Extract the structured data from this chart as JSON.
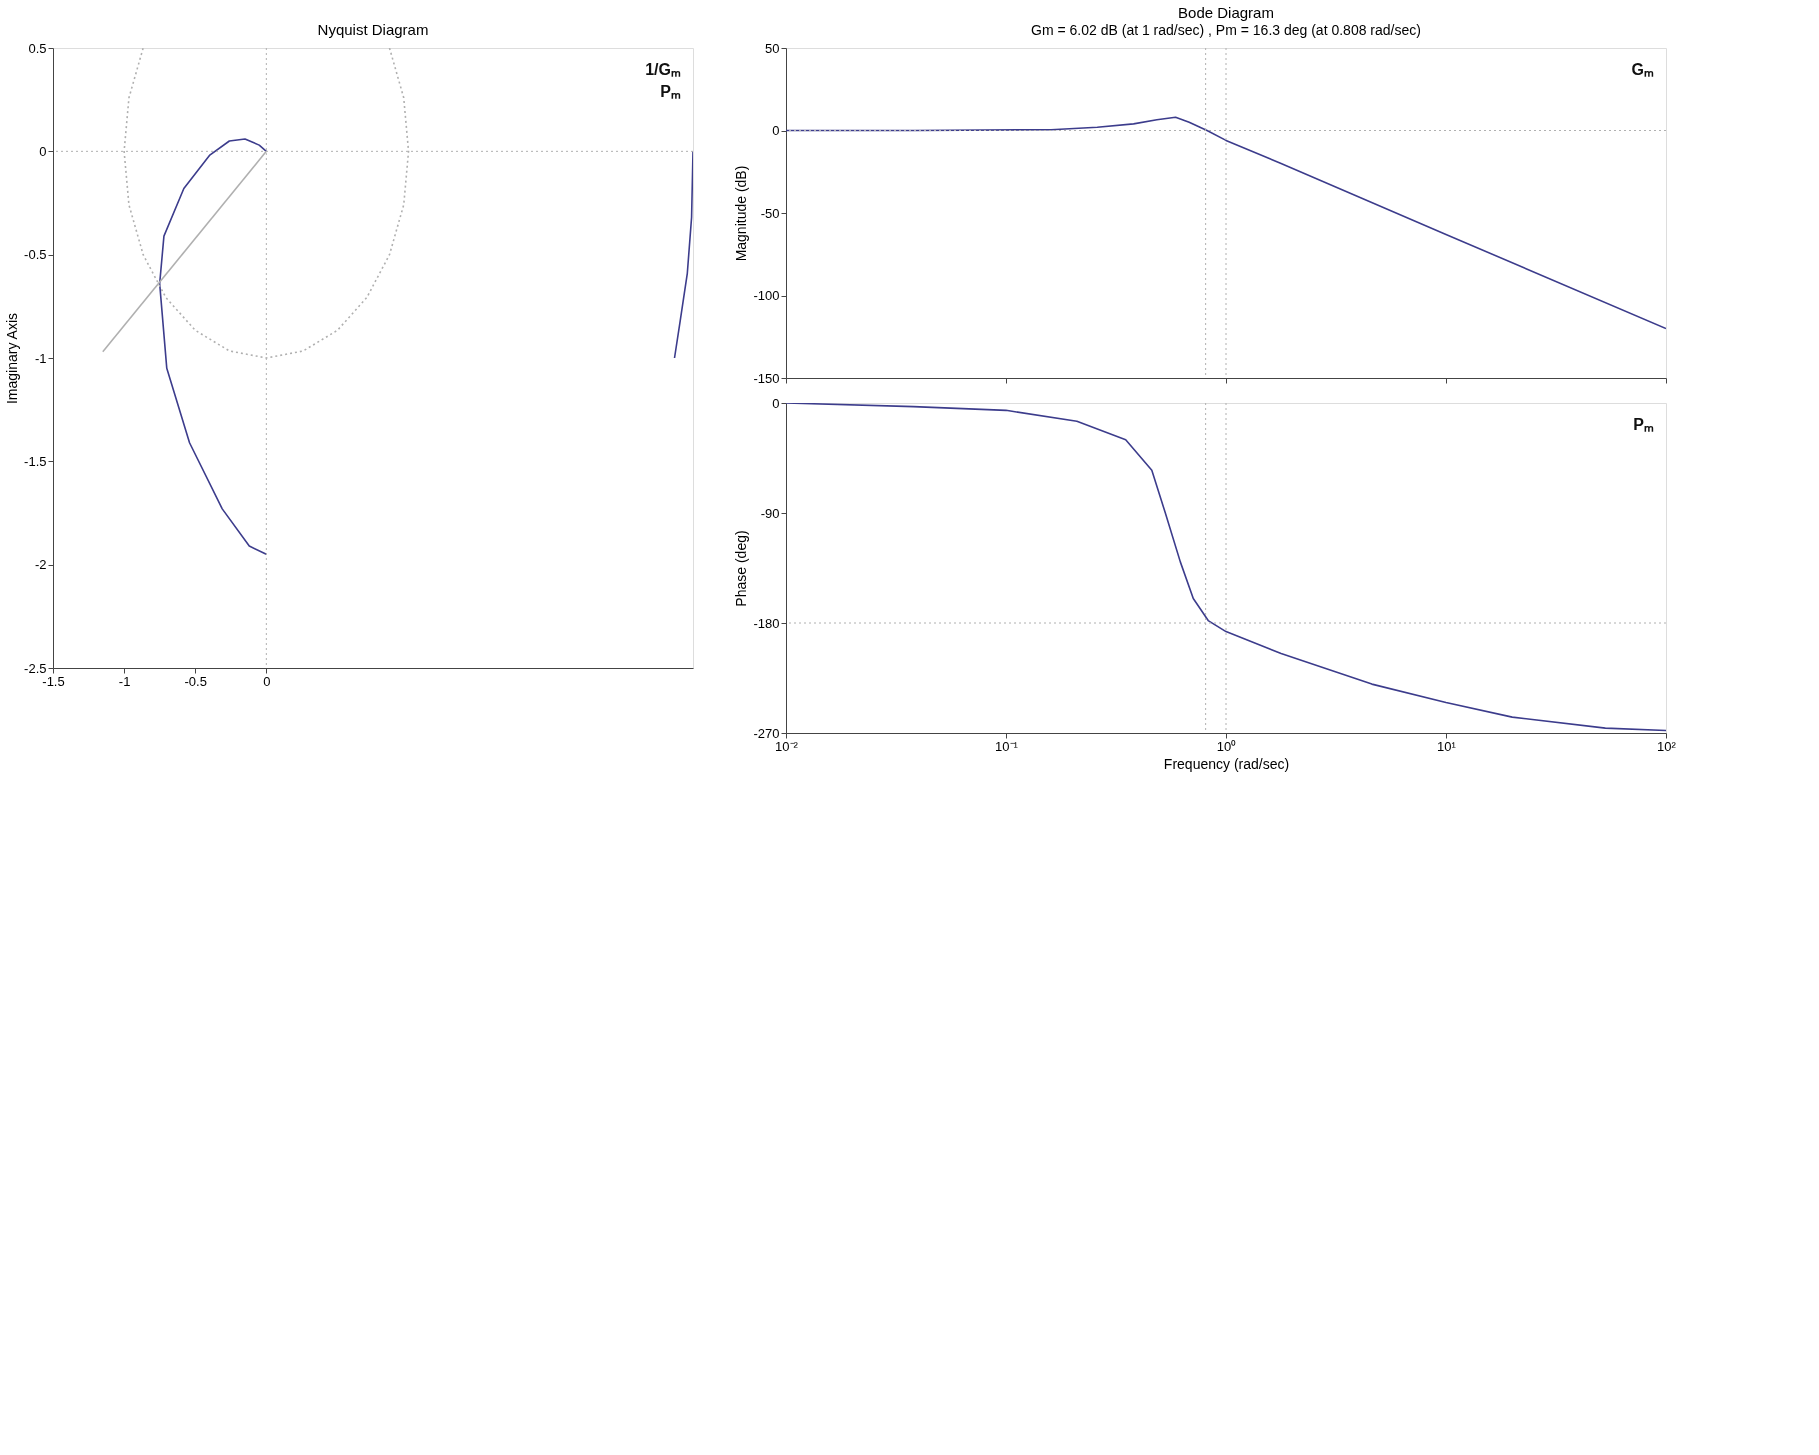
{
  "chart_data": [
    {
      "type": "line",
      "title": "Nyquist Diagram",
      "ylabel": "Imaginary Axis",
      "xlim": [
        -1.5,
        3
      ],
      "ylim": [
        -2.5,
        0.5
      ],
      "xticks": [
        -1.5,
        -1,
        -0.5,
        0
      ],
      "yticks": [
        -2.5,
        -2,
        -1.5,
        -1,
        -0.5,
        0,
        0.5
      ],
      "grid": false,
      "series": [
        {
          "color": "#3c3c8c",
          "line_style": "solid",
          "x": [
            3,
            2.99,
            2.96,
            2.91,
            2.87,
            null,
            0,
            -0.12,
            -0.31,
            -0.54,
            -0.7,
            -0.75,
            -0.72,
            -0.58,
            -0.4,
            -0.26,
            -0.15,
            -0.05,
            0
          ],
          "values": [
            0,
            -0.32,
            -0.59,
            -0.82,
            -1.0,
            null,
            -1.95,
            -1.91,
            -1.73,
            -1.41,
            -1.05,
            -0.64,
            -0.41,
            -0.18,
            -0.02,
            0.05,
            0.06,
            0.03,
            0
          ]
        },
        {
          "color": "#b0b0b0",
          "line_style": "solid",
          "x": [
            0,
            -1.15
          ],
          "values": [
            0,
            -0.97
          ]
        },
        {
          "color": "#b0b0b0",
          "line_style": "dotted",
          "x": [
            0.866,
            0.966,
            1,
            0.966,
            0.866,
            0.707,
            0.5,
            0.259,
            0,
            -0.259,
            -0.5,
            -0.707,
            -0.866,
            -0.966,
            -1,
            -0.966,
            -0.866
          ],
          "values": [
            0.5,
            0.259,
            0,
            -0.259,
            -0.5,
            -0.707,
            -0.866,
            -0.966,
            -1,
            -0.966,
            -0.866,
            -0.707,
            -0.5,
            -0.259,
            0,
            0.259,
            0.5
          ]
        }
      ],
      "ref_lines": [
        {
          "axis": "y",
          "value": 0,
          "color": "#b0b0b0",
          "line_style": "dotted"
        },
        {
          "axis": "x",
          "value": 0,
          "color": "#b0b0b0",
          "line_style": "dotted"
        }
      ],
      "annotations": [
        "1/Gₘ",
        "Pₘ"
      ]
    },
    {
      "type": "line",
      "title": "Bode Diagram",
      "subtitle": "Gm = 6.02 dB (at 1 rad/sec) , Pm = 16.3 deg (at 0.808 rad/sec)",
      "ylabel": "Magnitude (dB)",
      "log": "x",
      "xlim": [
        0.01,
        100
      ],
      "ylim": [
        -150,
        50
      ],
      "xticks": [
        0.01,
        0.1,
        1,
        10,
        100
      ],
      "yticks": [
        -150,
        -100,
        -50,
        0,
        50
      ],
      "tick_labels": "y",
      "grid": false,
      "series": [
        {
          "color": "#3c3c8c",
          "line_style": "solid",
          "x": [
            0.01,
            0.038,
            0.16,
            0.26,
            0.38,
            0.485,
            0.59,
            0.68,
            0.82,
            1,
            1.78,
            10,
            100
          ],
          "values": [
            0,
            0,
            0.5,
            2,
            4,
            6.5,
            8,
            5,
            0,
            -6,
            -20,
            -63,
            -120
          ]
        }
      ],
      "ref_lines": [
        {
          "axis": "y",
          "value": 0,
          "color": "#b0b0b0",
          "line_style": "dotted"
        },
        {
          "axis": "x",
          "value": 0.808,
          "color": "#b0b0b0",
          "line_style": "dotted"
        },
        {
          "axis": "x",
          "value": 1,
          "color": "#b0b0b0",
          "line_style": "dotted"
        }
      ],
      "annotations": [
        "Gₘ"
      ]
    },
    {
      "type": "line",
      "xlabel": "Frequency (rad/sec)",
      "ylabel": "Phase (deg)",
      "log": "x",
      "xlim": [
        0.01,
        100
      ],
      "ylim": [
        -270,
        0
      ],
      "xticks": [
        {
          "value": 0.01,
          "label": "10⁻²"
        },
        {
          "value": 0.1,
          "label": "10⁻¹"
        },
        {
          "value": 1,
          "label": "10⁰"
        },
        {
          "value": 10,
          "label": "10¹"
        },
        {
          "value": 100,
          "label": "10²"
        }
      ],
      "yticks": [
        -270,
        -180,
        -90,
        0
      ],
      "grid": false,
      "series": [
        {
          "color": "#3c3c8c",
          "line_style": "solid",
          "x": [
            0.01,
            0.038,
            0.1,
            0.21,
            0.35,
            0.46,
            0.53,
            0.62,
            0.71,
            0.83,
            1,
            1.78,
            4.6,
            10,
            20,
            53,
            100
          ],
          "values": [
            0,
            -3,
            -6,
            -15,
            -30,
            -55,
            -90,
            -130,
            -160,
            -178,
            -187,
            -205,
            -230,
            -245,
            -257,
            -266,
            -268
          ]
        }
      ],
      "ref_lines": [
        {
          "axis": "y",
          "value": -180,
          "color": "#b0b0b0",
          "line_style": "dotted"
        },
        {
          "axis": "x",
          "value": 0.808,
          "color": "#b0b0b0",
          "line_style": "dotted"
        },
        {
          "axis": "x",
          "value": 1,
          "color": "#b0b0b0",
          "line_style": "dotted"
        }
      ],
      "annotations": [
        "Pₘ"
      ]
    }
  ]
}
